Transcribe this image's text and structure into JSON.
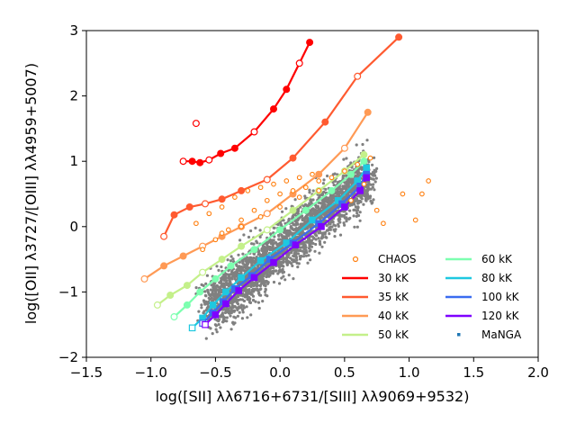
{
  "chart_data": {
    "type": "scatter",
    "title": "",
    "xlabel": "log([SII] λλ6716+6731/[SIII] λλ9069+9532)",
    "ylabel": "log([OII] λ3727/[OIII] λλ4959+5007)",
    "xlim": [
      -1.5,
      2.0
    ],
    "ylim": [
      -2,
      3
    ],
    "xticks": [
      "−1.5",
      "−1.0",
      "−0.5",
      "0.0",
      "0.5",
      "1.0",
      "1.5",
      "2.0"
    ],
    "yticks": [
      "−2",
      "−1",
      "0",
      "1",
      "2",
      "3"
    ],
    "legend_position": "lower-right",
    "legend_items": [
      {
        "label": "CHAOS",
        "color": "#ff7f0e",
        "kind": "ring"
      },
      {
        "label": "30 kK",
        "color": "#ff0000",
        "kind": "line"
      },
      {
        "label": "35 kK",
        "color": "#ff5a30",
        "kind": "line"
      },
      {
        "label": "40 kK",
        "color": "#ff9a55",
        "kind": "line"
      },
      {
        "label": "50 kK",
        "color": "#c4f08a",
        "kind": "line"
      },
      {
        "label": "60 kK",
        "color": "#7dffb0",
        "kind": "line"
      },
      {
        "label": "80 kK",
        "color": "#1ec8e0",
        "kind": "line"
      },
      {
        "label": "100 kK",
        "color": "#3a6cf0",
        "kind": "line"
      },
      {
        "label": "120 kK",
        "color": "#7f00ff",
        "kind": "line"
      },
      {
        "label": "MaNGA",
        "color": "#1f77b4",
        "kind": "dot"
      }
    ],
    "manga_cloud": {
      "description": "gray point cloud",
      "x_range": [
        -0.7,
        0.75
      ],
      "y_range": [
        -1.75,
        1.45
      ],
      "color": "#808080"
    },
    "chaos": {
      "color": "#ff7f0e",
      "x": [
        -0.65,
        -0.55,
        -0.45,
        -0.35,
        -0.25,
        -0.15,
        -0.05,
        0.05,
        0.15,
        0.25,
        -0.5,
        -0.4,
        -0.3,
        -0.2,
        -0.1,
        0.0,
        0.1,
        0.2,
        0.3,
        -0.6,
        -0.45,
        -0.3,
        -0.15,
        0.0,
        0.15,
        0.3,
        0.4,
        0.5,
        0.6,
        0.95,
        1.05,
        1.1,
        1.15,
        0.75,
        0.8,
        0.55,
        0.65,
        0.7
      ],
      "y": [
        0.05,
        0.2,
        0.3,
        0.45,
        0.55,
        0.6,
        0.65,
        0.7,
        0.75,
        0.8,
        -0.2,
        -0.05,
        0.1,
        0.25,
        0.4,
        0.5,
        0.55,
        0.6,
        0.7,
        -0.35,
        -0.1,
        0.0,
        0.15,
        0.3,
        0.45,
        0.55,
        0.75,
        0.85,
        0.95,
        0.5,
        0.1,
        0.5,
        0.7,
        0.25,
        0.05,
        0.4,
        0.65,
        1.05
      ]
    },
    "series": [
      {
        "name": "30 kK",
        "color": "#ff0000",
        "x": [
          -0.75,
          -0.68,
          -0.62,
          -0.55,
          -0.46,
          -0.35,
          -0.2,
          -0.05,
          0.05,
          0.15,
          0.23
        ],
        "y": [
          1.0,
          1.0,
          0.98,
          1.02,
          1.12,
          1.2,
          1.45,
          1.8,
          2.1,
          2.5,
          2.82
        ],
        "extra_open_points": [
          {
            "x": -0.65,
            "y": 1.58
          }
        ]
      },
      {
        "name": "35 kK",
        "color": "#ff5a30",
        "x": [
          -0.9,
          -0.82,
          -0.7,
          -0.58,
          -0.45,
          -0.3,
          -0.1,
          0.1,
          0.35,
          0.6,
          0.92
        ],
        "y": [
          -0.15,
          0.18,
          0.3,
          0.35,
          0.42,
          0.55,
          0.72,
          1.05,
          1.6,
          2.3,
          2.9
        ]
      },
      {
        "name": "40 kK",
        "color": "#ff9a55",
        "x": [
          -1.05,
          -0.9,
          -0.75,
          -0.6,
          -0.45,
          -0.3,
          -0.1,
          0.1,
          0.3,
          0.5,
          0.68
        ],
        "y": [
          -0.8,
          -0.6,
          -0.45,
          -0.3,
          -0.15,
          0.0,
          0.2,
          0.5,
          0.8,
          1.2,
          1.75
        ]
      },
      {
        "name": "50 kK",
        "color": "#c4f08a",
        "x": [
          -0.95,
          -0.85,
          -0.72,
          -0.6,
          -0.45,
          -0.3,
          -0.1,
          0.1,
          0.3,
          0.5,
          0.65
        ],
        "y": [
          -1.2,
          -1.05,
          -0.9,
          -0.7,
          -0.5,
          -0.3,
          -0.05,
          0.25,
          0.55,
          0.85,
          1.1
        ]
      },
      {
        "name": "60 kK",
        "color": "#7dffb0",
        "x": [
          -0.82,
          -0.72,
          -0.62,
          -0.5,
          -0.38,
          -0.2,
          0.0,
          0.2,
          0.4,
          0.55,
          0.65
        ],
        "y": [
          -1.38,
          -1.2,
          -1.0,
          -0.8,
          -0.6,
          -0.35,
          -0.05,
          0.25,
          0.55,
          0.8,
          1.0
        ]
      },
      {
        "name": "80 kK",
        "color": "#1ec8e0",
        "x": [
          -0.68,
          -0.6,
          -0.52,
          -0.42,
          -0.3,
          -0.15,
          0.05,
          0.25,
          0.45,
          0.6,
          0.67
        ],
        "y": [
          -1.55,
          -1.4,
          -1.2,
          -1.0,
          -0.78,
          -0.52,
          -0.25,
          0.1,
          0.4,
          0.7,
          0.9
        ]
      },
      {
        "name": "100 kK",
        "color": "#3a6cf0",
        "x": [
          -0.6,
          -0.52,
          -0.44,
          -0.35,
          -0.22,
          -0.08,
          0.1,
          0.3,
          0.48,
          0.62,
          0.67
        ],
        "y": [
          -1.48,
          -1.32,
          -1.15,
          -0.95,
          -0.75,
          -0.5,
          -0.25,
          0.05,
          0.35,
          0.62,
          0.8
        ]
      },
      {
        "name": "120 kK",
        "color": "#7f00ff",
        "x": [
          -0.58,
          -0.5,
          -0.42,
          -0.32,
          -0.2,
          -0.05,
          0.12,
          0.32,
          0.5,
          0.62,
          0.67
        ],
        "y": [
          -1.5,
          -1.35,
          -1.18,
          -0.98,
          -0.78,
          -0.55,
          -0.28,
          0.0,
          0.3,
          0.55,
          0.75
        ]
      }
    ]
  }
}
